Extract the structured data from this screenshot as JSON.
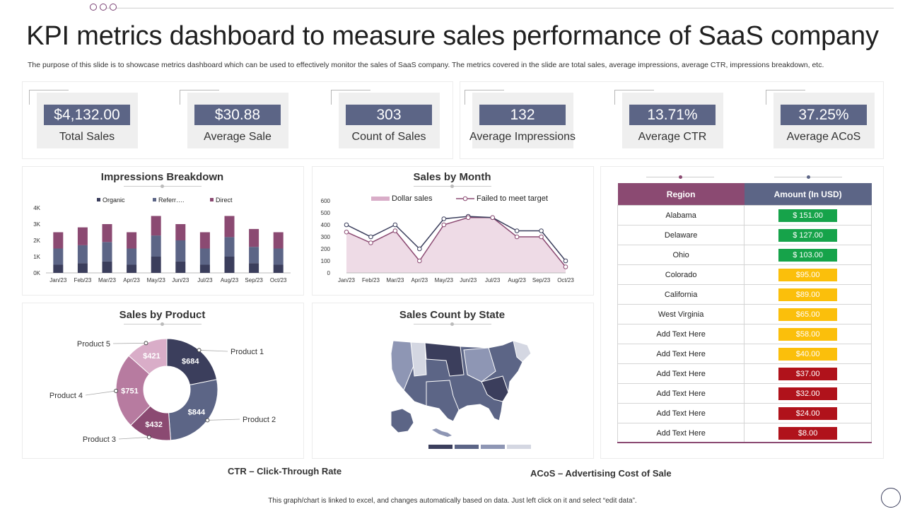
{
  "page": {
    "title": "KPI metrics dashboard to measure sales performance of SaaS company",
    "subtitle": "The purpose of this slide is to showcase metrics dashboard which can be used to effectively monitor the sales of SaaS company. The metrics covered in the slide are total sales, average impressions, average CTR,  impressions breakdown, etc.",
    "ctr_note": "CTR – Click-Through Rate",
    "acos_note": "ACoS – Advertising Cost of Sale",
    "footer": "This graph/chart is linked to excel, and changes automatically based on data. Just left click on it and select “edit data”."
  },
  "kpis": [
    {
      "value": "$4,132.00",
      "label": "Total Sales"
    },
    {
      "value": "$30.88",
      "label": "Average Sale"
    },
    {
      "value": "303",
      "label": "Count of Sales"
    },
    {
      "value": "132",
      "label": "Average Impressions"
    },
    {
      "value": "13.71%",
      "label": "Average CTR"
    },
    {
      "value": "37.25%",
      "label": "Average ACoS"
    }
  ],
  "colors": {
    "navy": "#3b3e5c",
    "slate": "#5c6586",
    "plum": "#8b4a72",
    "mauve": "#b77ba0",
    "pink": "#d9adc8",
    "fill": "#eedbe6",
    "green": "#16a34a",
    "yellow": "#fbbf0b",
    "red": "#b0121b"
  },
  "table": {
    "headers": [
      "Region",
      "Amount (In USD)"
    ],
    "rows": [
      {
        "region": "Alabama",
        "amount": "$ 151.00",
        "status": "green"
      },
      {
        "region": "Delaware",
        "amount": "$ 127.00",
        "status": "green"
      },
      {
        "region": "Ohio",
        "amount": "$ 103.00",
        "status": "green"
      },
      {
        "region": "Colorado",
        "amount": "$95.00",
        "status": "yellow"
      },
      {
        "region": "California",
        "amount": "$89.00",
        "status": "yellow"
      },
      {
        "region": "West Virginia",
        "amount": "$65.00",
        "status": "yellow"
      },
      {
        "region": "Add Text Here",
        "amount": "$58.00",
        "status": "yellow"
      },
      {
        "region": "Add Text Here",
        "amount": "$40.00",
        "status": "yellow"
      },
      {
        "region": "Add Text Here",
        "amount": "$37.00",
        "status": "red"
      },
      {
        "region": "Add Text Here",
        "amount": "$32.00",
        "status": "red"
      },
      {
        "region": "Add Text Here",
        "amount": "$24.00",
        "status": "red"
      },
      {
        "region": "Add Text Here",
        "amount": "$8.00",
        "status": "red"
      }
    ]
  },
  "chart_data": [
    {
      "id": "impressions",
      "type": "bar",
      "stacked": true,
      "title": "Impressions Breakdown",
      "categories": [
        "Jan/23",
        "Feb/23",
        "Mar/23",
        "Apr/23",
        "May/23",
        "Jun/23",
        "Jul/23",
        "Aug/23",
        "Sep/23",
        "Oct/23"
      ],
      "series": [
        {
          "name": "Organic",
          "values": [
            500,
            600,
            700,
            500,
            1000,
            700,
            500,
            1000,
            600,
            500
          ]
        },
        {
          "name": "Referr….",
          "values": [
            1000,
            1100,
            1200,
            1000,
            1300,
            1300,
            1000,
            1200,
            1000,
            1000
          ]
        },
        {
          "name": "Direct",
          "values": [
            1000,
            1100,
            1100,
            1000,
            1200,
            1000,
            1000,
            1300,
            1100,
            1000
          ]
        }
      ],
      "yticks": [
        "0K",
        "1K",
        "2K",
        "3K",
        "4K"
      ],
      "ylim": [
        0,
        4000
      ],
      "legend": "top"
    },
    {
      "id": "month",
      "type": "line",
      "title": "Sales by Month",
      "categories": [
        "Jan/23",
        "Feb/23",
        "Mar/23",
        "Apr/23",
        "May/23",
        "Jun/23",
        "Jul/23",
        "Aug/23",
        "Sep/23",
        "Oct/23"
      ],
      "series": [
        {
          "name": "Dollar sales",
          "kind": "area",
          "values": [
            340,
            250,
            350,
            100,
            400,
            460,
            460,
            300,
            300,
            50
          ]
        },
        {
          "name": "Failed to meet target",
          "kind": "line",
          "values": [
            400,
            300,
            400,
            200,
            450,
            470,
            460,
            350,
            350,
            100
          ]
        }
      ],
      "yticks": [
        "0",
        "100",
        "200",
        "300",
        "400",
        "500",
        "600"
      ],
      "ylim": [
        0,
        600
      ],
      "legend": "top"
    },
    {
      "id": "product",
      "type": "pie",
      "donut": true,
      "title": "Sales by Product",
      "slices": [
        {
          "name": "Product 1",
          "value": 684,
          "label": "$684"
        },
        {
          "name": "Product 2",
          "value": 844,
          "label": "$844"
        },
        {
          "name": "Product 3",
          "value": 432,
          "label": "$432"
        },
        {
          "name": "Product 4",
          "value": 751,
          "label": "$751"
        },
        {
          "name": "Product 5",
          "value": 421,
          "label": "$421"
        }
      ]
    }
  ],
  "map": {
    "title": "Sales Count by State",
    "legend_shades": [
      "#3b3e5c",
      "#5c6586",
      "#8e96b4",
      "#d4d7e2"
    ]
  }
}
